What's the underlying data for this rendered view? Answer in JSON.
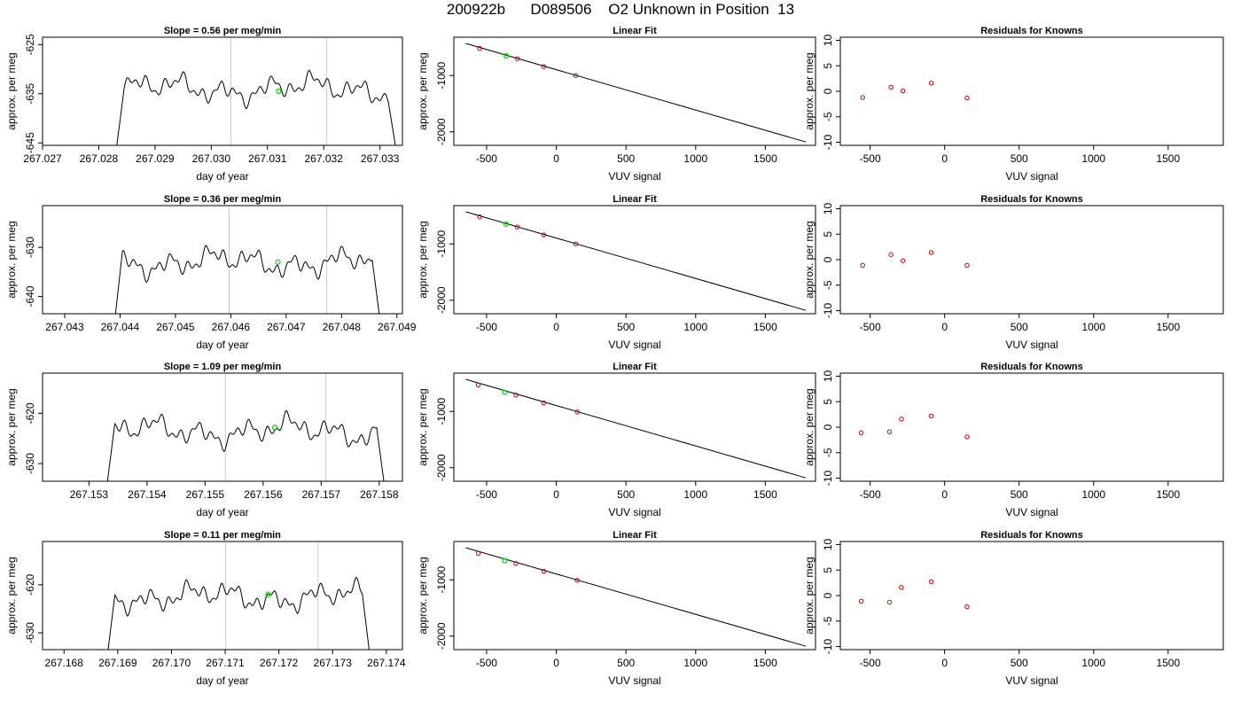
{
  "page_title": "200922b      D089506    O2 Unknown in Position  13",
  "colors": {
    "trace": "#000000",
    "marker": "#00dd00",
    "known_points": "#cc0000",
    "window_lines": "#cccccc"
  },
  "chart_data": [
    {
      "type": "line",
      "title": "Slope =  0.56  per meg/min",
      "xlabel": "day of year",
      "ylabel": "approx. per meg",
      "xlim": [
        267.027,
        267.0334
      ],
      "ylim": [
        -645.5,
        -623.5
      ],
      "xticks": [
        267.027,
        267.028,
        267.029,
        267.03,
        267.031,
        267.032,
        267.033
      ],
      "yticks": [
        -625,
        -635,
        -645
      ],
      "window_lines": [
        267.03035,
        267.03205
      ],
      "trace_start": 267.0283,
      "trace_end": 267.0333,
      "trace_base": -634,
      "trace_amp": 2.2,
      "marker": {
        "x": 267.0312,
        "y": -634.5
      }
    },
    {
      "type": "line",
      "title": "Slope =  0.36  per meg/min",
      "xlabel": "day of year",
      "ylabel": "approx. per meg",
      "xlim": [
        267.0426,
        267.0491
      ],
      "ylim": [
        -643.5,
        -621.5
      ],
      "xticks": [
        267.043,
        267.044,
        267.045,
        267.046,
        267.047,
        267.048,
        267.049
      ],
      "yticks": [
        -630,
        -640
      ],
      "window_lines": [
        267.04597,
        267.04773
      ],
      "trace_start": 267.0439,
      "trace_end": 267.0487,
      "trace_base": -633,
      "trace_amp": 2.2,
      "marker": {
        "x": 267.04685,
        "y": -633
      }
    },
    {
      "type": "line",
      "title": "Slope =  1.09  per meg/min",
      "xlabel": "day of year",
      "ylabel": "approx. per meg",
      "xlim": [
        267.1522,
        267.1584
      ],
      "ylim": [
        -633.5,
        -612
      ],
      "xticks": [
        267.153,
        267.154,
        267.155,
        267.156,
        267.157,
        267.158
      ],
      "yticks": [
        -620,
        -630
      ],
      "window_lines": [
        267.15535,
        267.15708
      ],
      "trace_start": 267.1533,
      "trace_end": 267.1581,
      "trace_base": -623.5,
      "trace_amp": 2.2,
      "marker": {
        "x": 267.1562,
        "y": -622.8
      }
    },
    {
      "type": "line",
      "title": "Slope =  0.11  per meg/min",
      "xlabel": "day of year",
      "ylabel": "approx. per meg",
      "xlim": [
        267.1676,
        267.1743
      ],
      "ylim": [
        -633.5,
        -611
      ],
      "xticks": [
        267.168,
        267.169,
        267.17,
        267.171,
        267.172,
        267.173,
        267.174
      ],
      "yticks": [
        -620,
        -630
      ],
      "window_lines": [
        267.17101,
        267.17273
      ],
      "trace_start": 267.1688,
      "trace_end": 267.1737,
      "trace_base": -622.5,
      "trace_amp": 2.2,
      "marker": {
        "x": 267.1718,
        "y": -622
      }
    },
    {
      "type": "scatter",
      "title": "Linear Fit",
      "xlabel": "VUV signal",
      "ylabel": "approx. per meg",
      "xlim": [
        -735,
        1860
      ],
      "ylim": [
        -2240,
        -320
      ],
      "xticks": [
        -500,
        0,
        500,
        1000,
        1500
      ],
      "yticks": [
        -1000,
        -2000
      ],
      "line": [
        [
          -650,
          -430
        ],
        [
          1790,
          -2180
        ]
      ],
      "points": [
        [
          -550,
          -520
        ],
        [
          -280,
          -700
        ],
        [
          -90,
          -840
        ],
        [
          140,
          -1000
        ]
      ],
      "marker": {
        "x": -360,
        "y": -650
      }
    },
    {
      "type": "scatter",
      "title": "Linear Fit",
      "xlabel": "VUV signal",
      "ylabel": "approx. per meg",
      "xlim": [
        -735,
        1860
      ],
      "ylim": [
        -2240,
        -320
      ],
      "xticks": [
        -500,
        0,
        500,
        1000,
        1500
      ],
      "yticks": [
        -1000,
        -2000
      ],
      "line": [
        [
          -650,
          -430
        ],
        [
          1790,
          -2180
        ]
      ],
      "points": [
        [
          -550,
          -520
        ],
        [
          -280,
          -700
        ],
        [
          -90,
          -840
        ],
        [
          140,
          -1000
        ]
      ],
      "marker": {
        "x": -360,
        "y": -650
      }
    },
    {
      "type": "scatter",
      "title": "Linear Fit",
      "xlabel": "VUV signal",
      "ylabel": "approx. per meg",
      "xlim": [
        -735,
        1860
      ],
      "ylim": [
        -2240,
        -320
      ],
      "xticks": [
        -500,
        0,
        500,
        1000,
        1500
      ],
      "yticks": [
        -1000,
        -2000
      ],
      "line": [
        [
          -650,
          -430
        ],
        [
          1790,
          -2180
        ]
      ],
      "points": [
        [
          -560,
          -530
        ],
        [
          -290,
          -710
        ],
        [
          -90,
          -850
        ],
        [
          150,
          -1010
        ]
      ],
      "marker": {
        "x": -370,
        "y": -660
      }
    },
    {
      "type": "scatter",
      "title": "Linear Fit",
      "xlabel": "VUV signal",
      "ylabel": "approx. per meg",
      "xlim": [
        -735,
        1860
      ],
      "ylim": [
        -2240,
        -320
      ],
      "xticks": [
        -500,
        0,
        500,
        1000,
        1500
      ],
      "yticks": [
        -1000,
        -2000
      ],
      "line": [
        [
          -650,
          -430
        ],
        [
          1790,
          -2180
        ]
      ],
      "points": [
        [
          -560,
          -530
        ],
        [
          -290,
          -710
        ],
        [
          -90,
          -850
        ],
        [
          150,
          -1010
        ]
      ],
      "marker": {
        "x": -370,
        "y": -660
      }
    },
    {
      "type": "scatter",
      "title": "Residuals for Knowns",
      "xlabel": "VUV signal",
      "ylabel": "approx. per meg",
      "xlim": [
        -700,
        1870
      ],
      "ylim": [
        -10.6,
        10.6
      ],
      "xticks": [
        -500,
        0,
        500,
        1000,
        1500
      ],
      "yticks": [
        -10,
        -5,
        0,
        5,
        10
      ],
      "points": [
        [
          -550,
          -1.2
        ],
        [
          -360,
          0.8
        ],
        [
          -280,
          0.1
        ],
        [
          -90,
          1.6
        ],
        [
          150,
          -1.3
        ]
      ]
    },
    {
      "type": "scatter",
      "title": "Residuals for Knowns",
      "xlabel": "VUV signal",
      "ylabel": "approx. per meg",
      "xlim": [
        -700,
        1870
      ],
      "ylim": [
        -10.6,
        10.6
      ],
      "xticks": [
        -500,
        0,
        500,
        1000,
        1500
      ],
      "yticks": [
        -10,
        -5,
        0,
        5,
        10
      ],
      "points": [
        [
          -550,
          -1.1
        ],
        [
          -360,
          1.0
        ],
        [
          -280,
          -0.2
        ],
        [
          -90,
          1.4
        ],
        [
          150,
          -1.1
        ]
      ]
    },
    {
      "type": "scatter",
      "title": "Residuals for Knowns",
      "xlabel": "VUV signal",
      "ylabel": "approx. per meg",
      "xlim": [
        -700,
        1870
      ],
      "ylim": [
        -10.6,
        10.6
      ],
      "xticks": [
        -500,
        0,
        500,
        1000,
        1500
      ],
      "yticks": [
        -10,
        -5,
        0,
        5,
        10
      ],
      "points": [
        [
          -560,
          -1.1
        ],
        [
          -370,
          -0.9
        ],
        [
          -290,
          1.6
        ],
        [
          -90,
          2.2
        ],
        [
          150,
          -1.9
        ]
      ]
    },
    {
      "type": "scatter",
      "title": "Residuals for Knowns",
      "xlabel": "VUV signal",
      "ylabel": "approx. per meg",
      "xlim": [
        -700,
        1870
      ],
      "ylim": [
        -10.6,
        10.6
      ],
      "xticks": [
        -500,
        0,
        500,
        1000,
        1500
      ],
      "yticks": [
        -10,
        -5,
        0,
        5,
        10
      ],
      "points": [
        [
          -560,
          -1.1
        ],
        [
          -370,
          -1.3
        ],
        [
          -290,
          1.6
        ],
        [
          -90,
          2.7
        ],
        [
          150,
          -2.2
        ]
      ]
    }
  ]
}
